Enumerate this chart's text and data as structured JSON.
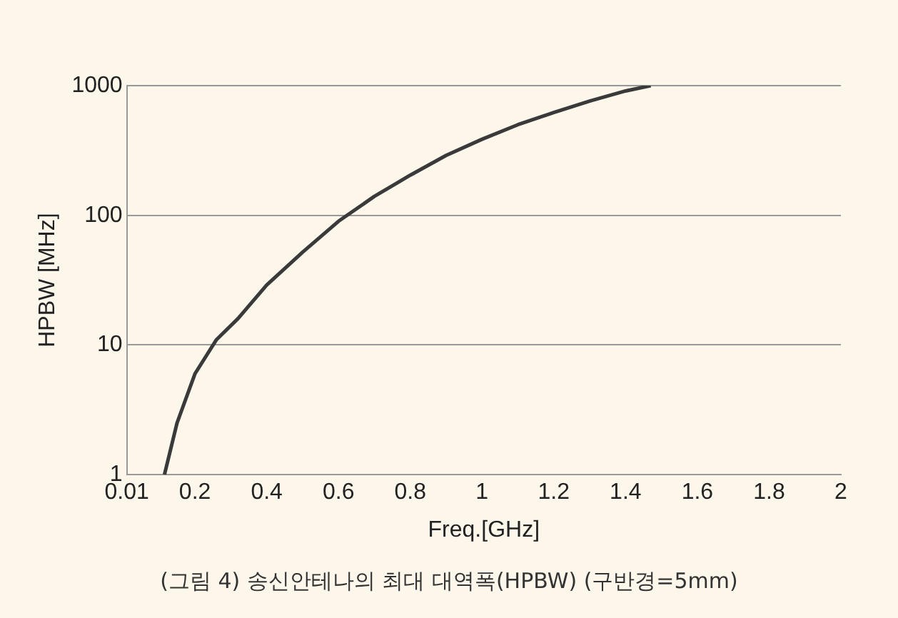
{
  "chart_data": {
    "type": "line",
    "xlabel": "Freq.[GHz]",
    "ylabel": "HPBW [MHz]",
    "x": [
      0.115,
      0.15,
      0.2,
      0.26,
      0.32,
      0.4,
      0.5,
      0.6,
      0.7,
      0.8,
      0.9,
      1.0,
      1.1,
      1.2,
      1.3,
      1.4,
      1.47
    ],
    "series": [
      {
        "color": "#3a3a3a",
        "values": [
          1,
          2.5,
          6,
          11,
          16,
          29,
          52,
          90,
          140,
          204,
          290,
          386,
          500,
          620,
          760,
          910,
          1000
        ]
      }
    ],
    "xlim": [
      0.01,
      2
    ],
    "xticks": [
      0.01,
      {
        "value": 0.2,
        "label": "0.2"
      },
      0.4,
      0.6,
      0.8,
      1,
      1.2,
      1.4,
      1.6,
      1.8,
      2
    ],
    "ylim": [
      1,
      1000
    ],
    "yticks": [
      1,
      10,
      100,
      1000
    ],
    "log": "y",
    "grid": "y",
    "marker": "none",
    "line_style": "solid",
    "legend": false,
    "annotations": [
      "(그림 4) 송신안테나의 최대 대역폭(HPBW) (구반경=5mm)"
    ]
  }
}
